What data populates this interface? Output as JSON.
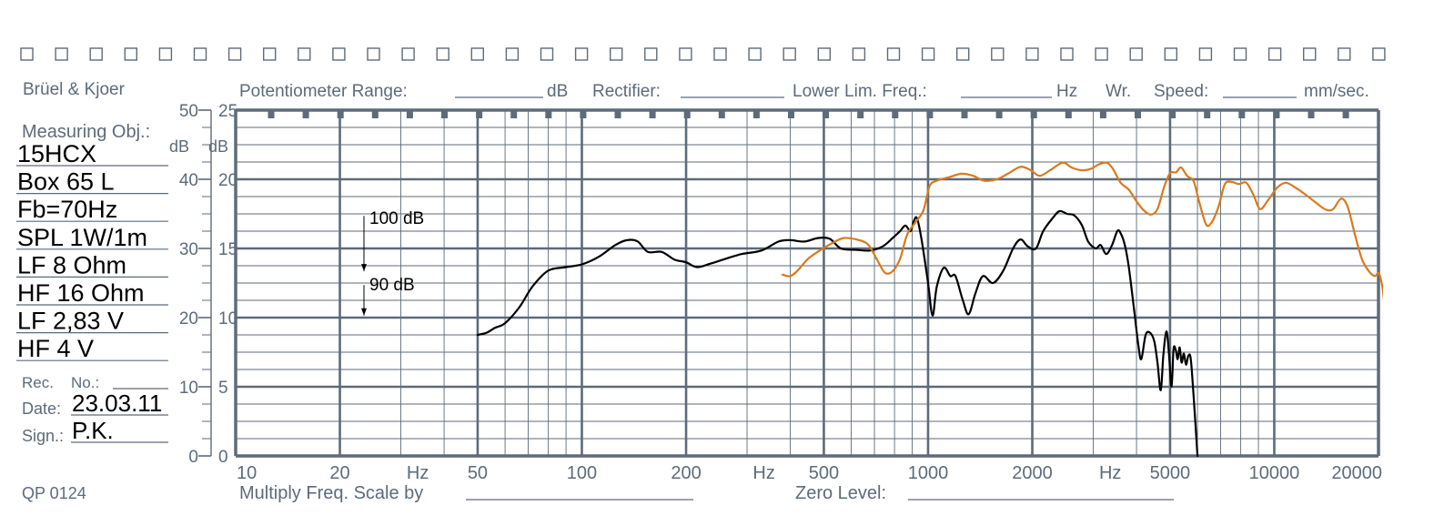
{
  "header": {
    "brand": "Brüel & Kjoer",
    "potentiometer_label": "Potentiometer Range:",
    "potentiometer_unit": "dB",
    "rectifier_label": "Rectifier:",
    "lower_lim_label": "Lower Lim. Freq.:",
    "lower_lim_unit": "Hz",
    "wr_label": "Wr.",
    "speed_label": "Speed:",
    "speed_unit": "mm/sec."
  },
  "sidebar": {
    "measuring_obj_label": "Measuring Obj.:",
    "entries": [
      "15HCX",
      "Box 65 L",
      "Fb=70Hz",
      "SPL 1W/1m",
      "LF 8 Ohm",
      "HF 16 Ohm",
      "LF 2,83 V",
      "HF 4 V"
    ],
    "rec_label": "Rec.",
    "no_label": "No.:",
    "date_label": "Date:",
    "date_value": "23.03.11",
    "sign_label": "Sign.:",
    "sign_value": "P.K."
  },
  "footer": {
    "form_code": "QP 0124",
    "multiply_label": "Multiply Freq. Scale by",
    "zero_level_label": "Zero Level:"
  },
  "chart_data": {
    "type": "line",
    "x_scale": "log",
    "xlim": [
      10,
      20000
    ],
    "x_ticks": [
      {
        "value": 10,
        "label": "10"
      },
      {
        "value": 20,
        "label": "20"
      },
      {
        "value": 50,
        "label": "50"
      },
      {
        "value": 100,
        "label": "100"
      },
      {
        "value": 200,
        "label": "200"
      },
      {
        "value": 500,
        "label": "500"
      },
      {
        "value": 1000,
        "label": "1000"
      },
      {
        "value": 2000,
        "label": "2000"
      },
      {
        "value": 5000,
        "label": "5000"
      },
      {
        "value": 10000,
        "label": "10000"
      },
      {
        "value": 20000,
        "label": "20000"
      }
    ],
    "x_unit_labels": [
      {
        "value": 31.6,
        "label": "Hz"
      },
      {
        "value": 316,
        "label": "Hz"
      },
      {
        "value": 3162,
        "label": "Hz"
      }
    ],
    "ylim": [
      0,
      50
    ],
    "y_ticks_outer": [
      "0",
      "10",
      "20",
      "30",
      "40",
      "50"
    ],
    "y_ticks_inner": [
      "0",
      "5",
      "10",
      "15",
      "20",
      "25"
    ],
    "y_units": [
      "dB",
      "dB"
    ],
    "grid": true,
    "annotations": [
      {
        "label": "100 dB",
        "y": 34.7
      },
      {
        "label": "90 dB",
        "y": 24.7
      }
    ],
    "series": [
      {
        "color": "#000000",
        "points": [
          [
            50,
            17.5
          ],
          [
            53,
            17.8
          ],
          [
            56,
            18.5
          ],
          [
            60,
            19.2
          ],
          [
            66,
            21.5
          ],
          [
            72,
            24.5
          ],
          [
            80,
            26.8
          ],
          [
            90,
            27.3
          ],
          [
            100,
            27.7
          ],
          [
            112,
            28.8
          ],
          [
            125,
            30.5
          ],
          [
            135,
            31.2
          ],
          [
            145,
            31.0
          ],
          [
            155,
            29.5
          ],
          [
            170,
            29.5
          ],
          [
            185,
            28.4
          ],
          [
            200,
            28.0
          ],
          [
            215,
            27.3
          ],
          [
            235,
            27.8
          ],
          [
            260,
            28.5
          ],
          [
            290,
            29.2
          ],
          [
            330,
            29.7
          ],
          [
            370,
            31.0
          ],
          [
            400,
            31.2
          ],
          [
            440,
            31.0
          ],
          [
            480,
            31.5
          ],
          [
            520,
            31.4
          ],
          [
            560,
            30.0
          ],
          [
            620,
            29.8
          ],
          [
            680,
            29.7
          ],
          [
            740,
            30.3
          ],
          [
            790,
            31.5
          ],
          [
            830,
            32.5
          ],
          [
            860,
            33.3
          ],
          [
            890,
            32.5
          ],
          [
            910,
            34.0
          ],
          [
            930,
            34.3
          ],
          [
            960,
            31.0
          ],
          [
            1000,
            25.0
          ],
          [
            1030,
            20.3
          ],
          [
            1060,
            24.5
          ],
          [
            1110,
            27.2
          ],
          [
            1160,
            26.0
          ],
          [
            1200,
            26.0
          ],
          [
            1260,
            22.5
          ],
          [
            1310,
            20.5
          ],
          [
            1370,
            23.5
          ],
          [
            1440,
            26.0
          ],
          [
            1540,
            25.0
          ],
          [
            1650,
            26.8
          ],
          [
            1760,
            30.0
          ],
          [
            1850,
            31.3
          ],
          [
            1940,
            30.3
          ],
          [
            2050,
            30.0
          ],
          [
            2150,
            32.5
          ],
          [
            2300,
            34.5
          ],
          [
            2400,
            35.4
          ],
          [
            2520,
            35.0
          ],
          [
            2640,
            34.8
          ],
          [
            2780,
            33.4
          ],
          [
            2900,
            31.0
          ],
          [
            3050,
            30.0
          ],
          [
            3150,
            30.5
          ],
          [
            3270,
            29.2
          ],
          [
            3400,
            30.5
          ],
          [
            3520,
            32.5
          ],
          [
            3600,
            32.2
          ],
          [
            3700,
            30.5
          ],
          [
            3800,
            27.3
          ],
          [
            3950,
            20.5
          ],
          [
            4050,
            16.0
          ],
          [
            4130,
            14.0
          ],
          [
            4250,
            17.5
          ],
          [
            4380,
            17.8
          ],
          [
            4500,
            16.6
          ],
          [
            4600,
            13.5
          ],
          [
            4700,
            9.5
          ],
          [
            4780,
            14.5
          ],
          [
            4880,
            18.0
          ],
          [
            4960,
            15.0
          ],
          [
            5050,
            10.0
          ],
          [
            5120,
            15.5
          ],
          [
            5200,
            15.2
          ],
          [
            5260,
            14.0
          ],
          [
            5330,
            15.7
          ],
          [
            5400,
            13.5
          ],
          [
            5480,
            14.8
          ],
          [
            5560,
            13.2
          ],
          [
            5650,
            14.5
          ],
          [
            5740,
            14.0
          ],
          [
            5850,
            8.5
          ],
          [
            6000,
            0.0
          ]
        ]
      },
      {
        "color": "#d97a1e",
        "points": [
          [
            380,
            26.2
          ],
          [
            400,
            26.0
          ],
          [
            420,
            26.8
          ],
          [
            450,
            28.5
          ],
          [
            490,
            29.8
          ],
          [
            530,
            30.8
          ],
          [
            570,
            31.5
          ],
          [
            620,
            31.3
          ],
          [
            670,
            30.6
          ],
          [
            710,
            28.5
          ],
          [
            750,
            26.5
          ],
          [
            790,
            26.7
          ],
          [
            830,
            28.5
          ],
          [
            870,
            32.0
          ],
          [
            920,
            33.8
          ],
          [
            970,
            35.5
          ],
          [
            1010,
            39.0
          ],
          [
            1060,
            39.8
          ],
          [
            1150,
            40.3
          ],
          [
            1250,
            40.8
          ],
          [
            1350,
            40.5
          ],
          [
            1450,
            39.8
          ],
          [
            1580,
            40.0
          ],
          [
            1700,
            40.8
          ],
          [
            1850,
            41.8
          ],
          [
            1980,
            41.3
          ],
          [
            2100,
            40.5
          ],
          [
            2250,
            41.3
          ],
          [
            2450,
            42.4
          ],
          [
            2600,
            41.7
          ],
          [
            2780,
            41.3
          ],
          [
            2950,
            41.5
          ],
          [
            3100,
            42.1
          ],
          [
            3280,
            42.4
          ],
          [
            3420,
            41.5
          ],
          [
            3600,
            39.5
          ],
          [
            3800,
            38.5
          ],
          [
            4000,
            36.8
          ],
          [
            4200,
            35.5
          ],
          [
            4400,
            34.9
          ],
          [
            4600,
            35.7
          ],
          [
            4800,
            38.8
          ],
          [
            5000,
            40.9
          ],
          [
            5200,
            41.0
          ],
          [
            5380,
            41.7
          ],
          [
            5600,
            40.5
          ],
          [
            5850,
            39.7
          ],
          [
            6050,
            37.0
          ],
          [
            6350,
            33.5
          ],
          [
            6600,
            33.8
          ],
          [
            6900,
            36.0
          ],
          [
            7200,
            39.3
          ],
          [
            7550,
            39.6
          ],
          [
            7900,
            39.3
          ],
          [
            8300,
            39.5
          ],
          [
            8700,
            37.8
          ],
          [
            9100,
            35.7
          ],
          [
            9600,
            37.0
          ],
          [
            10200,
            38.8
          ],
          [
            10800,
            39.5
          ],
          [
            11500,
            38.8
          ],
          [
            12300,
            37.8
          ],
          [
            13200,
            36.6
          ],
          [
            14100,
            35.6
          ],
          [
            14800,
            35.7
          ],
          [
            15600,
            37.2
          ],
          [
            16300,
            36.0
          ],
          [
            17100,
            32.0
          ],
          [
            17900,
            28.5
          ],
          [
            18700,
            26.8
          ],
          [
            19500,
            26.0
          ],
          [
            20100,
            26.3
          ],
          [
            20700,
            23.0
          ],
          [
            21300,
            15.0
          ],
          [
            21800,
            5.0
          ]
        ]
      }
    ]
  }
}
